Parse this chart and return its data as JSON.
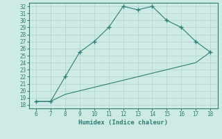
{
  "x_upper": [
    6,
    7,
    8,
    9,
    10,
    11,
    12,
    13,
    14,
    15,
    16,
    17,
    18
  ],
  "y_upper": [
    18.5,
    18.5,
    22,
    25.5,
    27,
    29,
    32,
    31.5,
    32,
    30,
    29,
    27,
    25.5
  ],
  "x_lower": [
    6,
    7,
    8,
    9,
    10,
    11,
    12,
    13,
    14,
    15,
    16,
    17,
    18
  ],
  "y_lower": [
    18.5,
    18.5,
    19.5,
    20.0,
    20.5,
    21.0,
    21.5,
    22.0,
    22.5,
    23.0,
    23.5,
    24.0,
    25.5
  ],
  "line_color": "#2e7d74",
  "bg_color": "#cdeae5",
  "grid_color": "#aed4ce",
  "xlabel": "Humidex (Indice chaleur)",
  "xlim": [
    5.5,
    18.5
  ],
  "ylim": [
    17.5,
    32.5
  ],
  "xticks": [
    6,
    7,
    8,
    9,
    10,
    11,
    12,
    13,
    14,
    15,
    16,
    17,
    18
  ],
  "yticks": [
    18,
    19,
    20,
    21,
    22,
    23,
    24,
    25,
    26,
    27,
    28,
    29,
    30,
    31,
    32
  ],
  "marker": "+"
}
